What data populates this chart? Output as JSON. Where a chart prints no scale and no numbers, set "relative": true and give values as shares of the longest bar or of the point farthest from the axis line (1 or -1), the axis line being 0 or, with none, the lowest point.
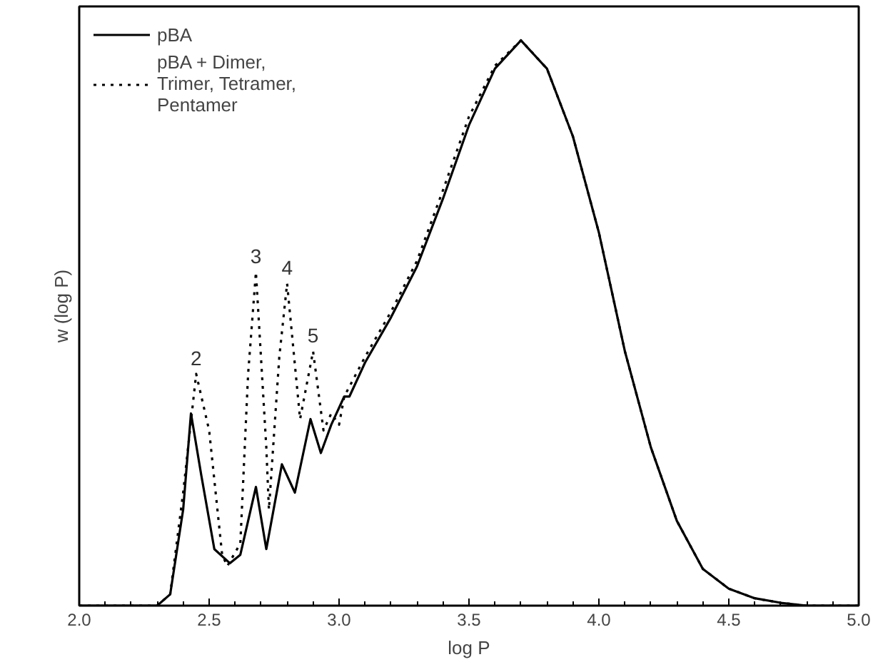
{
  "chart_data": {
    "type": "line",
    "relative": true,
    "xlabel": "log P",
    "ylabel": "w (log P)",
    "xlim": [
      2.0,
      5.0
    ],
    "xticks": [
      {
        "value": 2.0,
        "label": "2.0"
      },
      {
        "value": 2.5,
        "label": "2.5"
      },
      {
        "value": 3.0,
        "label": "3.0"
      },
      {
        "value": 3.5,
        "label": "3.5"
      },
      {
        "value": 4.0,
        "label": "4.0"
      },
      {
        "value": 4.5,
        "label": "4.5"
      },
      {
        "value": 5.0,
        "label": "5.0"
      }
    ],
    "tick_labels": "x",
    "grid": false,
    "legend": "top left",
    "marker": "none",
    "series": [
      {
        "name": "pBA",
        "color": "#000000",
        "line_style": "solid",
        "x": [
          2.0,
          2.3,
          2.35,
          2.4,
          2.43,
          2.47,
          2.52,
          2.58,
          2.62,
          2.68,
          2.72,
          2.78,
          2.83,
          2.89,
          2.93,
          2.97,
          3.02,
          3.04,
          3.1,
          3.2,
          3.3,
          3.4,
          3.5,
          3.6,
          3.7,
          3.8,
          3.9,
          4.0,
          4.1,
          4.2,
          4.3,
          4.4,
          4.5,
          4.6,
          4.7,
          4.8,
          5.0
        ],
        "values": [
          0,
          0,
          0.02,
          0.17,
          0.34,
          0.23,
          0.1,
          0.075,
          0.09,
          0.21,
          0.1,
          0.25,
          0.2,
          0.33,
          0.27,
          0.32,
          0.37,
          0.37,
          0.43,
          0.51,
          0.6,
          0.72,
          0.85,
          0.95,
          1.0,
          0.95,
          0.83,
          0.66,
          0.45,
          0.28,
          0.15,
          0.065,
          0.03,
          0.013,
          0.005,
          0,
          0
        ]
      },
      {
        "name": "pBA + Dimer,\nTrimer, Tetramer,\nPentamer",
        "color": "#000000",
        "line_style": "dotted",
        "x": [
          2.0,
          2.3,
          2.35,
          2.4,
          2.45,
          2.5,
          2.55,
          2.57,
          2.62,
          2.65,
          2.68,
          2.72,
          2.73,
          2.77,
          2.8,
          2.85,
          2.9,
          2.94,
          2.97,
          3.0,
          3.02,
          3.1,
          3.2,
          3.3,
          3.4,
          3.5,
          3.6,
          3.7,
          3.8,
          3.9,
          4.0,
          4.1,
          4.2,
          4.3,
          4.4,
          4.5,
          4.6,
          4.7,
          4.8,
          5.0
        ],
        "values": [
          0,
          0,
          0.02,
          0.2,
          0.41,
          0.31,
          0.09,
          0.07,
          0.11,
          0.41,
          0.59,
          0.28,
          0.17,
          0.44,
          0.57,
          0.33,
          0.45,
          0.31,
          0.34,
          0.32,
          0.37,
          0.44,
          0.52,
          0.61,
          0.735,
          0.865,
          0.955,
          1.0,
          0.95,
          0.83,
          0.66,
          0.45,
          0.28,
          0.15,
          0.065,
          0.03,
          0.013,
          0.005,
          0,
          0
        ]
      }
    ],
    "annotations": [
      {
        "text": "2",
        "x": 2.45,
        "y": 0.41
      },
      {
        "text": "3",
        "x": 2.68,
        "y": 0.59
      },
      {
        "text": "4",
        "x": 2.8,
        "y": 0.57
      },
      {
        "text": "5",
        "x": 2.9,
        "y": 0.45
      }
    ]
  }
}
